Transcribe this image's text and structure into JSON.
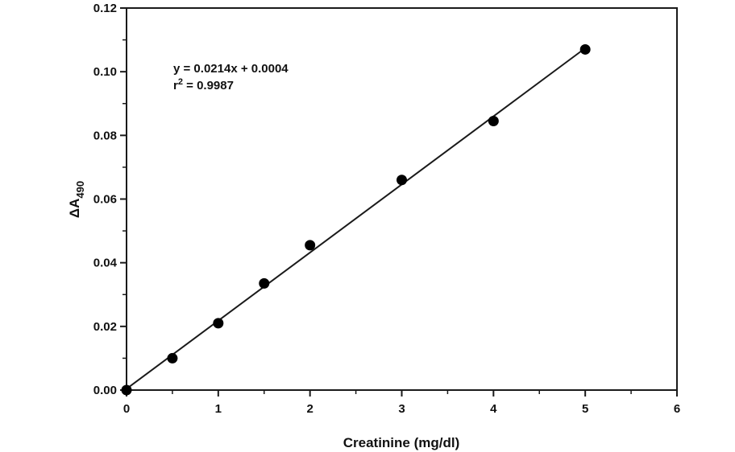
{
  "chart_data": {
    "type": "scatter",
    "title": "",
    "xlabel": "Creatinine (mg/dl)",
    "ylabel": "ΔA490",
    "ylabel_parts": {
      "main": "ΔA",
      "subscript": "490"
    },
    "xlim": [
      0,
      6
    ],
    "ylim": [
      0,
      0.12
    ],
    "x_ticks": [
      0,
      1,
      2,
      3,
      4,
      5,
      6
    ],
    "x_tick_labels": [
      "0",
      "1",
      "2",
      "3",
      "4",
      "5",
      "6"
    ],
    "y_ticks": [
      0,
      0.02,
      0.04,
      0.06,
      0.08,
      0.1,
      0.12
    ],
    "y_tick_labels": [
      "0.00",
      "0.02",
      "0.04",
      "0.06",
      "0.08",
      "0.10",
      "0.12"
    ],
    "grid": false,
    "legend": "none",
    "series": [
      {
        "x": [
          0,
          0.5,
          1,
          1.5,
          2,
          3,
          4,
          5
        ],
        "y": [
          0.0,
          0.01,
          0.021,
          0.0335,
          0.0455,
          0.066,
          0.0845,
          0.107
        ]
      }
    ],
    "fit": {
      "slope": 0.0214,
      "intercept": 0.0004,
      "x_range": [
        0,
        5
      ]
    },
    "annotations": {
      "equation": "y = 0.0214x + 0.0004",
      "r_prefix": "r",
      "r_superscript": "2",
      "r_value": " = 0.9987"
    },
    "colors": {
      "marker": "#000000",
      "line": "#1a1a1a",
      "axis": "#1a1a1a",
      "background": "#ffffff"
    }
  }
}
